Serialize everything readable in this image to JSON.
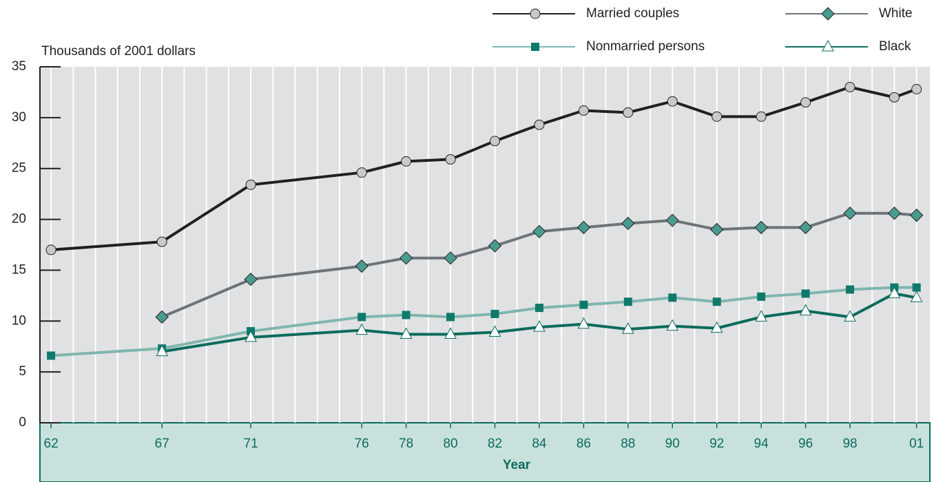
{
  "chart_data": {
    "type": "line",
    "y_axis_label": "Thousands of 2001 dollars",
    "x_axis_label": "Year",
    "x": [
      1962,
      1967,
      1971,
      1976,
      1978,
      1980,
      1982,
      1984,
      1986,
      1988,
      1990,
      1992,
      1994,
      1996,
      1998,
      2000,
      2001
    ],
    "series": [
      {
        "name": "Married couples",
        "color": "#231f20",
        "marker": "circle",
        "marker_color": "#c8c9cb",
        "values": [
          17.0,
          17.8,
          23.4,
          24.6,
          25.7,
          25.9,
          27.7,
          29.3,
          30.7,
          30.5,
          31.6,
          30.1,
          30.1,
          31.5,
          33.0,
          32.0,
          32.8
        ]
      },
      {
        "name": "White",
        "color": "#6d7478",
        "marker": "diamond",
        "marker_color": "#4a9b8f",
        "values": [
          null,
          10.4,
          14.1,
          15.4,
          16.2,
          16.2,
          17.4,
          18.8,
          19.2,
          19.6,
          19.9,
          19.0,
          19.2,
          19.2,
          20.6,
          20.6,
          20.4
        ]
      },
      {
        "name": "Nonmarried persons",
        "color": "#7fb6ae",
        "marker": "square",
        "marker_color": "#0f7a6b",
        "values": [
          6.6,
          7.3,
          9.0,
          10.4,
          10.6,
          10.4,
          10.7,
          11.3,
          11.6,
          11.9,
          12.3,
          11.9,
          12.4,
          12.7,
          13.1,
          13.3,
          13.3
        ]
      },
      {
        "name": "Black",
        "color": "#0b6b5c",
        "marker": "triangle",
        "marker_color": "#ffffff",
        "values": [
          null,
          7.0,
          8.4,
          9.1,
          8.7,
          8.7,
          8.9,
          9.4,
          9.7,
          9.2,
          9.5,
          9.3,
          10.4,
          11.0,
          10.4,
          12.7,
          12.3
        ]
      }
    ],
    "xlim": [
      1961.5,
      2001.6
    ],
    "xticks": [
      {
        "value": 1962,
        "label": "62"
      },
      {
        "value": 1967,
        "label": "67"
      },
      {
        "value": 1971,
        "label": "71"
      },
      {
        "value": 1976,
        "label": "76"
      },
      {
        "value": 1978,
        "label": "78"
      },
      {
        "value": 1980,
        "label": "80"
      },
      {
        "value": 1982,
        "label": "82"
      },
      {
        "value": 1984,
        "label": "84"
      },
      {
        "value": 1986,
        "label": "86"
      },
      {
        "value": 1988,
        "label": "88"
      },
      {
        "value": 1990,
        "label": "90"
      },
      {
        "value": 1992,
        "label": "92"
      },
      {
        "value": 1994,
        "label": "94"
      },
      {
        "value": 1996,
        "label": "96"
      },
      {
        "value": 1998,
        "label": "98"
      },
      {
        "value": 2001,
        "label": "01"
      }
    ],
    "x_gridlines": [
      1962,
      1963,
      1964,
      1965,
      1966,
      1967,
      1968,
      1969,
      1970,
      1971,
      1972,
      1973,
      1974,
      1975,
      1976,
      1977,
      1978,
      1979,
      1980,
      1981,
      1982,
      1983,
      1984,
      1985,
      1986,
      1987,
      1988,
      1989,
      1990,
      1991,
      1992,
      1993,
      1994,
      1995,
      1996,
      1997,
      1998,
      1999,
      2000,
      2001
    ],
    "ylim": [
      0,
      35
    ],
    "yticks": [
      0,
      5,
      10,
      15,
      20,
      25,
      30,
      35
    ],
    "legend": "top-right"
  }
}
